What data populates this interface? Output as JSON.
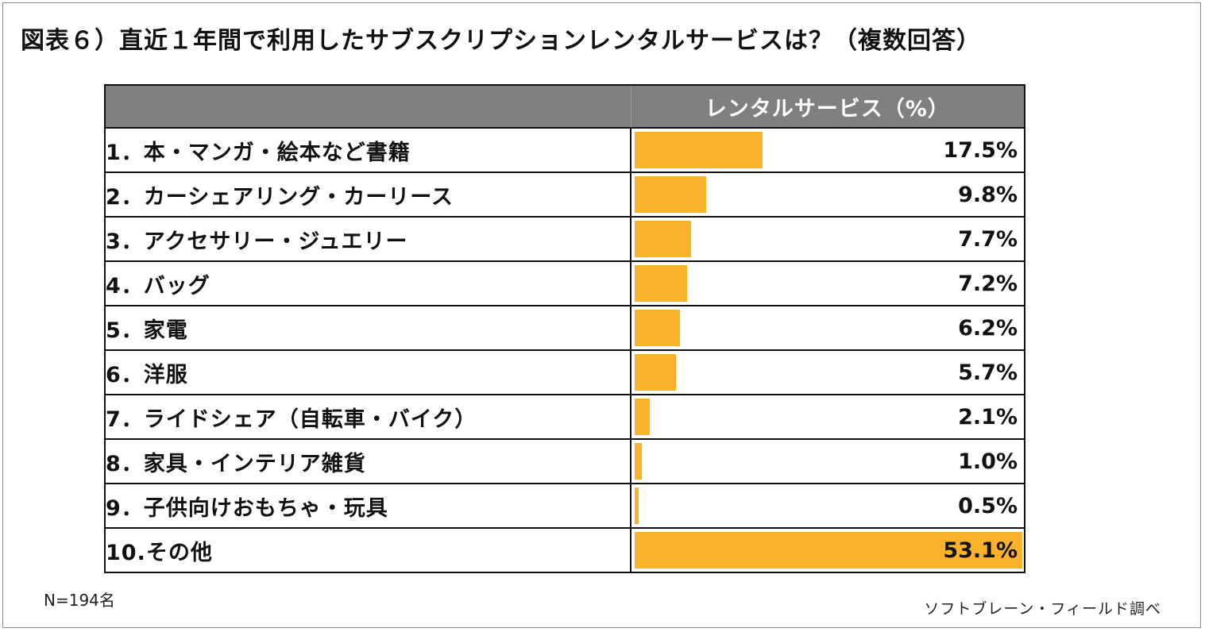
{
  "title": "図表６）直近１年間で利用したサブスクリプションレンタルサービスは？（複数回答）",
  "note": "N=194名",
  "source": "ソフトブレーン・フィールド調べ",
  "chart_data": {
    "type": "bar",
    "orientation": "horizontal",
    "header": "レンタルサービス（%）",
    "categories": [
      "1．本・マンガ・絵本など書籍",
      "2．カーシェアリング・カーリース",
      "3．アクセサリー・ジュエリー",
      "4．バッグ",
      "5．家電",
      "6．洋服",
      "7．ライドシェア（自転車・バイク）",
      "8．家具・インテリア雑貨",
      "9．子供向けおもちゃ・玩具",
      "10.その他"
    ],
    "values": [
      17.5,
      9.8,
      7.7,
      7.2,
      6.2,
      5.7,
      2.1,
      1.0,
      0.5,
      53.1
    ],
    "value_labels": [
      "17.5%",
      "9.8%",
      "7.7%",
      "7.2%",
      "6.2%",
      "5.7%",
      "2.1%",
      "1.0%",
      "0.5%",
      "53.1%"
    ],
    "xlim": [
      0,
      53.1
    ],
    "bar_color": "#fbb22a",
    "header_color": "#808080"
  }
}
